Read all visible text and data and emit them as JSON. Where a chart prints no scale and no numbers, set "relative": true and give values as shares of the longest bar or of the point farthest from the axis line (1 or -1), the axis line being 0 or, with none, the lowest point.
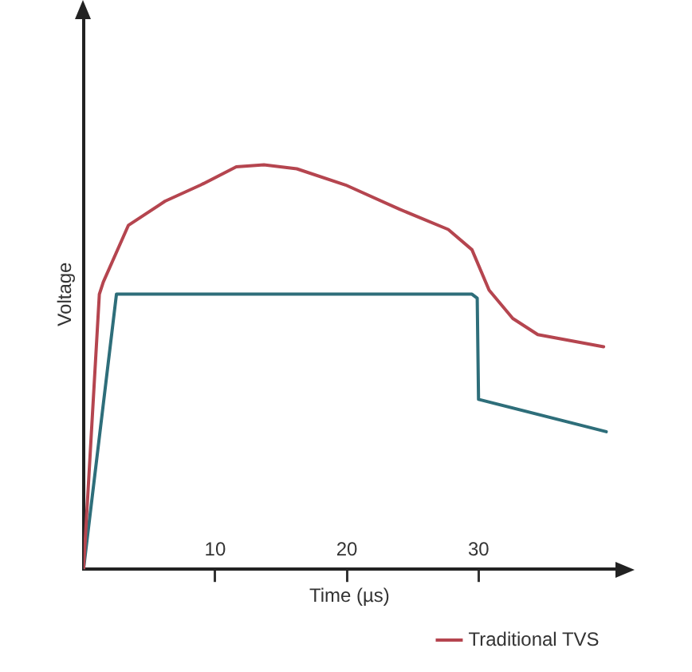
{
  "chart_data": {
    "type": "line",
    "relative": true,
    "xlabel": "Time (µs)",
    "ylabel": "Voltage",
    "xlim": [
      0,
      40.4
    ],
    "xticks": [
      10,
      20,
      30
    ],
    "legend": "bottom right",
    "marker": "none",
    "line_style": "solid",
    "tick_labels": "x",
    "series": [
      {
        "name": "Traditional TVS",
        "color": "#b5454f",
        "x": [
          0,
          1.2,
          1.5,
          3.4,
          6.2,
          8.9,
          11.6,
          13.7,
          16.2,
          19.9,
          24,
          27.7,
          29.5,
          30.8,
          32.6,
          34.5,
          39.5
        ],
        "values": [
          0,
          0.68,
          0.71,
          0.85,
          0.91,
          0.95,
          0.995,
          1,
          0.99,
          0.95,
          0.89,
          0.84,
          0.79,
          0.69,
          0.62,
          0.58,
          0.55
        ]
      },
      {
        "color": "#2e6e7a",
        "x": [
          0,
          2.5,
          29.5,
          29.9,
          30,
          39.7
        ],
        "values": [
          0,
          0.68,
          0.68,
          0.67,
          0.42,
          0.34
        ]
      }
    ]
  }
}
